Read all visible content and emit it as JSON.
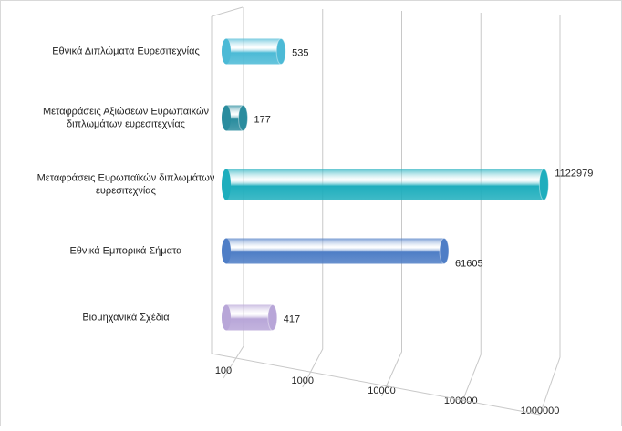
{
  "chart_data": {
    "type": "bar",
    "orientation": "horizontal",
    "categories": [
      "Εθνικά  Διπλώματα Ευρεσιτεχνίας",
      "Μεταφράσεις  Αξιώσεων Ευρωπαϊκών\nδιπλωμάτων ευρεσιτεχνίας",
      "Μεταφράσεις  Ευρωπαϊκών διπλωμάτων\nευρεσιτεχνίας",
      "Εθνικά  Εμπορικά Σήματα",
      "Βιομηχανικά Σχέδια"
    ],
    "values": [
      535,
      177,
      1122979,
      61605,
      417
    ],
    "colors": [
      "#4cbad6",
      "#2a8c9e",
      "#1eaebd",
      "#4f7ec6",
      "#b8a6d8"
    ],
    "xscale": "log",
    "xlim": [
      100,
      1000000
    ],
    "xticks": [
      100,
      1000,
      10000,
      100000,
      1000000
    ],
    "grid": true
  }
}
